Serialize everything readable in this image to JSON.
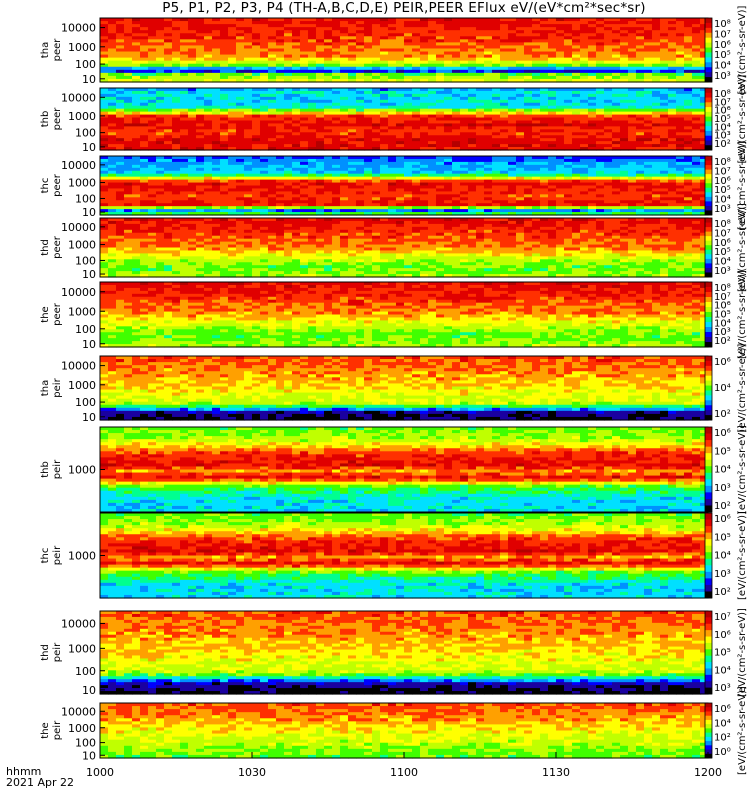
{
  "title": "P5, P1, P2, P3, P4 (TH-A,B,C,D,E) PEIR,PEER EFlux eV/(eV*cm²*sec*sr)",
  "footer": {
    "time_unit": "hhmm",
    "date": "2021 Apr 22"
  },
  "colors": {
    "scale": [
      "#000000",
      "#1a00a0",
      "#0000ff",
      "#0090ff",
      "#00e0ff",
      "#00ff90",
      "#40ff00",
      "#c0ff00",
      "#ffff00",
      "#ffa000",
      "#ff3000",
      "#e00000",
      "#b40000"
    ]
  },
  "chart_data": {
    "type": "heatmap",
    "x_axis": {
      "ticks": [
        "1000",
        "1030",
        "1100",
        "1130",
        "1200"
      ],
      "range": [
        "10:00",
        "12:00"
      ]
    },
    "panels": [
      {
        "label1": "tha",
        "label2": "peer",
        "y_ticks": [
          "10000",
          "1000",
          "100",
          "10"
        ],
        "cb_ticks": [
          "10⁸",
          "10⁷",
          "10⁶",
          "10⁵",
          "10⁴",
          "10³"
        ],
        "cb_label": "[eV/(cm²-s-sr-eV)]"
      },
      {
        "label1": "thb",
        "label2": "peer",
        "y_ticks": [
          "10000",
          "1000",
          "100",
          "10"
        ],
        "cb_ticks": [
          "10⁸",
          "10⁷",
          "10⁶",
          "10⁵",
          "10⁴",
          "10³",
          "10²"
        ],
        "cb_label": "[eV/(cm²-s-sr-eV)]"
      },
      {
        "label1": "thc",
        "label2": "peer",
        "y_ticks": [
          "10000",
          "1000",
          "100",
          "10"
        ],
        "cb_ticks": [
          "10⁸",
          "10⁷",
          "10⁶",
          "10⁵",
          "10⁴",
          "10³"
        ],
        "cb_label": "[eV/(cm²-s-sr-eV)]"
      },
      {
        "label1": "thd",
        "label2": "peer",
        "y_ticks": [
          "10000",
          "1000",
          "100",
          "10"
        ],
        "cb_ticks": [
          "10⁸",
          "10⁷",
          "10⁶",
          "10⁵",
          "10⁴",
          "10³"
        ],
        "cb_label": "[eV/(cm²-s-sr-eV)]"
      },
      {
        "label1": "the",
        "label2": "peer",
        "y_ticks": [
          "10000",
          "1000",
          "100",
          "10"
        ],
        "cb_ticks": [
          "10⁸",
          "10⁷",
          "10⁶",
          "10⁵",
          "10⁴",
          "10³",
          "10²"
        ],
        "cb_label": "[eV/(cm²-s-sr-eV)]"
      },
      {
        "label1": "tha",
        "label2": "peir",
        "y_ticks": [
          "10000",
          "1000",
          "100",
          "10"
        ],
        "cb_ticks": [
          "10⁶",
          "10⁴",
          "10²"
        ],
        "cb_label": "[eV/(cm²-s-sr-eV)]"
      },
      {
        "label1": "thb",
        "label2": "peir",
        "y_ticks": [
          "1000"
        ],
        "cb_ticks": [
          "10⁶",
          "10⁵",
          "10⁴",
          "10³",
          "10²"
        ],
        "cb_label": "[eV/(cm²-s-sr-eV)]"
      },
      {
        "label1": "thc",
        "label2": "peir",
        "y_ticks": [
          "1000"
        ],
        "cb_ticks": [
          "10⁶",
          "10⁵",
          "10⁴",
          "10³",
          "10²"
        ],
        "cb_label": "[eV/(cm²-s-sr-eV)]"
      },
      {
        "label1": "thd",
        "label2": "peir",
        "y_ticks": [
          "10000",
          "1000",
          "100",
          "10"
        ],
        "cb_ticks": [
          "10⁷",
          "10⁶",
          "10⁵",
          "10⁴",
          "10³"
        ],
        "cb_label": "[eV/(cm²-s-sr-eV)]"
      },
      {
        "label1": "the",
        "label2": "peir",
        "y_ticks": [
          "10000",
          "1000",
          "100",
          "10"
        ],
        "cb_ticks": [
          "10⁶",
          "10⁴",
          "10²",
          "10⁰"
        ],
        "cb_label": "[eV/(cm²-s-sr-eV)]"
      }
    ]
  }
}
